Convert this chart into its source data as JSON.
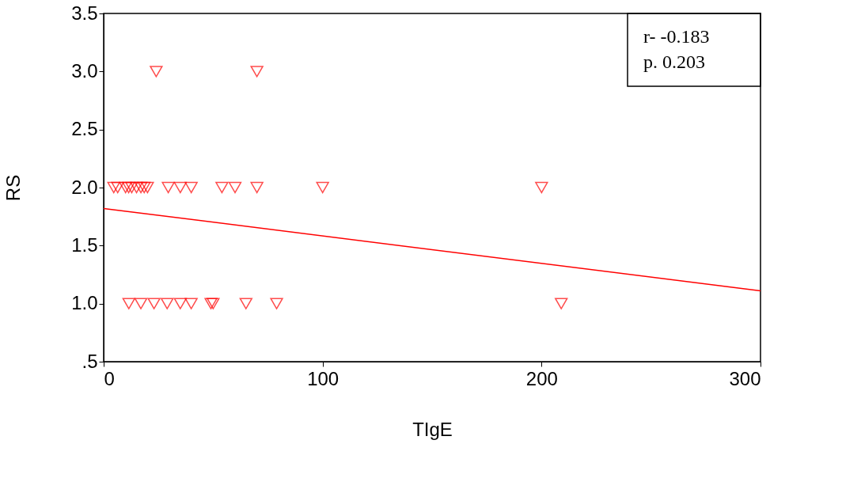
{
  "chart_data": {
    "type": "scatter",
    "xlabel": "TIgE",
    "ylabel": "RS",
    "xlim": [
      0,
      300
    ],
    "xticks": [
      0,
      100,
      200,
      300
    ],
    "ylim": [
      0.5,
      3.5
    ],
    "yticks": [
      {
        "value": 0.5,
        "label": ".5"
      },
      {
        "value": 1.0,
        "label": "1.0"
      },
      {
        "value": 1.5,
        "label": "1.5"
      },
      {
        "value": 2.0,
        "label": "2.0"
      },
      {
        "value": 2.5,
        "label": "2.5"
      },
      {
        "value": 3.0,
        "label": "3.0"
      },
      {
        "value": 3.5,
        "label": "3.5"
      }
    ],
    "grid": false,
    "annotations": [
      "r- -0.183",
      "p. 0.203"
    ],
    "series": [
      {
        "marker": "triangle",
        "color": "#ff0000",
        "x": [
          4.6,
          6.4,
          10,
          11.4,
          12.8,
          15,
          17,
          18.5,
          20,
          29.5,
          35,
          40,
          54,
          60,
          70,
          100,
          200,
          11.5,
          17,
          23,
          29,
          35,
          40,
          49,
          50,
          65,
          79,
          209,
          24,
          70
        ],
        "values": [
          2,
          2,
          2,
          2,
          2,
          2,
          2,
          2,
          2,
          2,
          2,
          2,
          2,
          2,
          2,
          2,
          2,
          1,
          1,
          1,
          1,
          1,
          1,
          1,
          1,
          1,
          1,
          1,
          3,
          3
        ]
      },
      {
        "type": "line",
        "marker": "none",
        "color": "#ff0000",
        "x": [
          0,
          300
        ],
        "values": [
          1.82,
          1.11
        ]
      }
    ]
  }
}
